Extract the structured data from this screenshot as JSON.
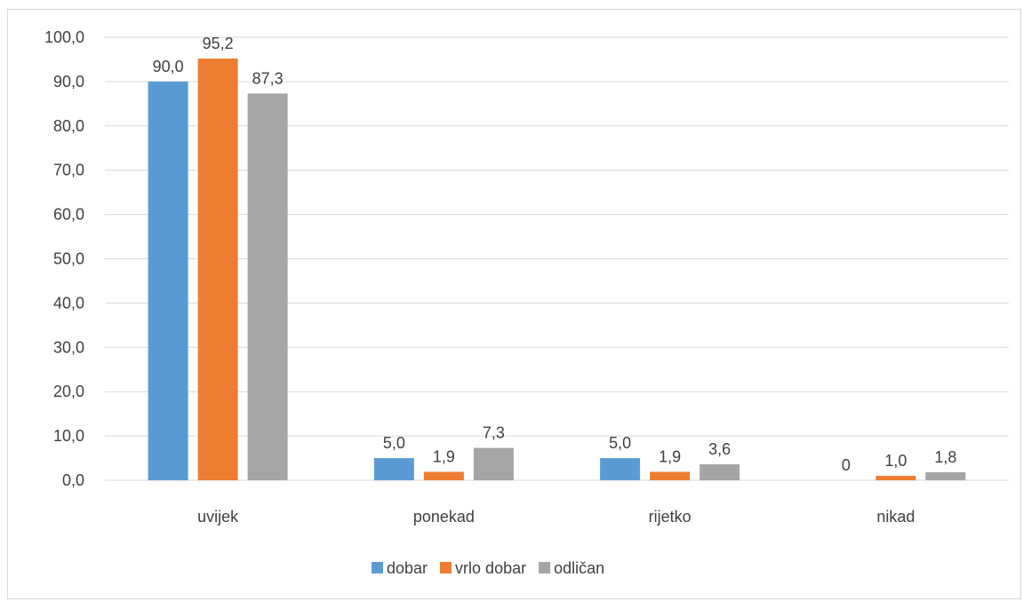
{
  "chart_data": {
    "type": "bar",
    "title": "",
    "xlabel": "",
    "ylabel": "",
    "categories": [
      "uvijek",
      "ponekad",
      "rijetko",
      "nikad"
    ],
    "series": [
      {
        "name": "dobar",
        "color": "#5b9bd5",
        "values": [
          90.0,
          5.0,
          5.0,
          0
        ],
        "labels": [
          "90,0",
          "5,0",
          "5,0",
          "0"
        ]
      },
      {
        "name": "vrlo dobar",
        "color": "#ed7d31",
        "values": [
          95.2,
          1.9,
          1.9,
          1.0
        ],
        "labels": [
          "95,2",
          "1,9",
          "1,9",
          "1,0"
        ]
      },
      {
        "name": "odličan",
        "color": "#a5a5a5",
        "values": [
          87.3,
          7.3,
          3.6,
          1.8
        ],
        "labels": [
          "87,3",
          "7,3",
          "3,6",
          "1,8"
        ]
      }
    ],
    "ylim": [
      0,
      100
    ],
    "yticks": [
      0,
      10,
      20,
      30,
      40,
      50,
      60,
      70,
      80,
      90,
      100
    ],
    "ytick_labels": [
      "0,0",
      "10,0",
      "20,0",
      "30,0",
      "40,0",
      "50,0",
      "60,0",
      "70,0",
      "80,0",
      "90,0",
      "100,0"
    ],
    "grid": "horizontal",
    "legend_position": "bottom",
    "gridline_color": "#d9d9d9",
    "axis_color": "#d9d9d9"
  }
}
